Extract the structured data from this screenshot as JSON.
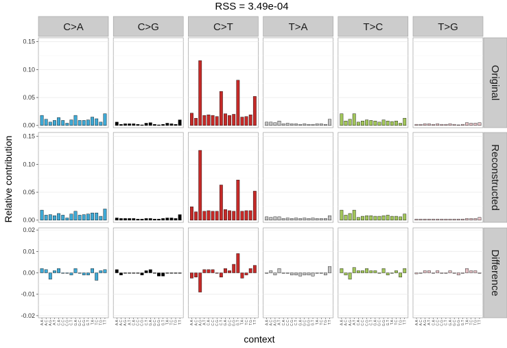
{
  "chart_data": {
    "type": "bar",
    "title": "RSS = 3.49e-04",
    "xlabel": "context",
    "ylabel": "Relative contribution",
    "grid": true,
    "columns": [
      "C>A",
      "C>G",
      "C>T",
      "T>A",
      "T>C",
      "T>G"
    ],
    "colors": {
      "C>A": "#3fa9d5",
      "C>G": "#000000",
      "C>T": "#c52a28",
      "T>A": "#c4c4c4",
      "T>C": "#a2c65b",
      "T>G": "#e6c2c6"
    },
    "contexts": [
      "A.A",
      "A.C",
      "A.G",
      "A.T",
      "C.A",
      "C.C",
      "C.G",
      "C.T",
      "G.A",
      "G.C",
      "G.G",
      "G.T",
      "T.A",
      "T.C",
      "T.G",
      "T.T"
    ],
    "rows": [
      {
        "name": "Original",
        "ylim": [
          -0.004,
          0.157
        ],
        "ticks": [
          0.0,
          0.05,
          0.1,
          0.15
        ],
        "tick_labels": [
          "0.00",
          "0.05",
          "0.10",
          "0.15"
        ],
        "values": {
          "C>A": [
            0.018,
            0.011,
            0.006,
            0.009,
            0.014,
            0.009,
            0.004,
            0.01,
            0.018,
            0.009,
            0.009,
            0.01,
            0.015,
            0.012,
            0.006,
            0.021
          ],
          "C>G": [
            0.006,
            0.002,
            0.003,
            0.003,
            0.003,
            0.002,
            0.001,
            0.004,
            0.005,
            0.002,
            0.001,
            0.002,
            0.004,
            0.003,
            0.002,
            0.01
          ],
          "C>T": [
            0.022,
            0.013,
            0.116,
            0.018,
            0.019,
            0.018,
            0.016,
            0.061,
            0.021,
            0.018,
            0.02,
            0.081,
            0.015,
            0.016,
            0.019,
            0.052
          ],
          "T>A": [
            0.006,
            0.006,
            0.005,
            0.008,
            0.003,
            0.004,
            0.003,
            0.003,
            0.002,
            0.003,
            0.002,
            0.002,
            0.003,
            0.003,
            0.002,
            0.011
          ],
          "T>C": [
            0.021,
            0.008,
            0.011,
            0.021,
            0.006,
            0.008,
            0.01,
            0.009,
            0.008,
            0.006,
            0.01,
            0.008,
            0.007,
            0.008,
            0.004,
            0.013
          ],
          "T>G": [
            0.002,
            0.002,
            0.003,
            0.003,
            0.002,
            0.003,
            0.002,
            0.002,
            0.003,
            0.002,
            0.001,
            0.002,
            0.005,
            0.004,
            0.004,
            0.005
          ]
        }
      },
      {
        "name": "Reconstructed",
        "ylim": [
          -0.004,
          0.157
        ],
        "ticks": [
          0.0,
          0.05,
          0.1,
          0.15
        ],
        "tick_labels": [
          "0.00",
          "0.05",
          "0.10",
          "0.15"
        ],
        "values": {
          "C>A": [
            0.018,
            0.009,
            0.01,
            0.008,
            0.012,
            0.009,
            0.004,
            0.011,
            0.016,
            0.009,
            0.01,
            0.011,
            0.013,
            0.013,
            0.007,
            0.02
          ],
          "C>G": [
            0.004,
            0.003,
            0.003,
            0.003,
            0.003,
            0.002,
            0.002,
            0.003,
            0.003,
            0.002,
            0.002,
            0.003,
            0.004,
            0.004,
            0.003,
            0.01
          ],
          "C>T": [
            0.024,
            0.015,
            0.125,
            0.016,
            0.017,
            0.016,
            0.016,
            0.063,
            0.019,
            0.017,
            0.016,
            0.072,
            0.016,
            0.017,
            0.017,
            0.052
          ],
          "T>A": [
            0.006,
            0.005,
            0.006,
            0.006,
            0.003,
            0.004,
            0.003,
            0.004,
            0.003,
            0.004,
            0.003,
            0.004,
            0.003,
            0.003,
            0.003,
            0.008
          ],
          "T>C": [
            0.018,
            0.009,
            0.012,
            0.018,
            0.005,
            0.007,
            0.008,
            0.008,
            0.007,
            0.007,
            0.008,
            0.009,
            0.007,
            0.007,
            0.006,
            0.011
          ],
          "T>G": [
            0.002,
            0.002,
            0.002,
            0.002,
            0.002,
            0.002,
            0.002,
            0.002,
            0.002,
            0.002,
            0.002,
            0.002,
            0.003,
            0.003,
            0.003,
            0.005
          ]
        }
      },
      {
        "name": "Difference",
        "ylim": [
          -0.021,
          0.021
        ],
        "ticks": [
          -0.02,
          -0.01,
          0.0,
          0.01,
          0.02
        ],
        "tick_labels": [
          "-0.02",
          "-0.01",
          "0.00",
          "0.01",
          "0.02"
        ],
        "values": {
          "C>A": [
            0.002,
            0.0015,
            -0.003,
            0.001,
            0.002,
            0.0,
            0.0,
            -0.001,
            0.002,
            0.0,
            -0.001,
            -0.001,
            0.002,
            -0.0035,
            0.001,
            0.0015
          ],
          "C>G": [
            0.0015,
            -0.001,
            0.0,
            0.0,
            0.0,
            0.0,
            -0.001,
            0.001,
            0.0015,
            0.0,
            -0.0015,
            -0.0015,
            0.0,
            0.0,
            0.0,
            0.0
          ],
          "C>T": [
            -0.0025,
            -0.002,
            -0.009,
            0.0015,
            0.0015,
            0.0015,
            0.0,
            -0.002,
            0.002,
            0.001,
            0.004,
            0.009,
            -0.0025,
            -0.001,
            0.002,
            0.0035
          ],
          "T>A": [
            0.0,
            0.001,
            -0.001,
            0.002,
            0.0,
            0.0,
            -0.001,
            -0.001,
            -0.0015,
            -0.001,
            -0.001,
            -0.0015,
            0.0,
            0.0,
            -0.001,
            0.003
          ],
          "T>C": [
            0.002,
            -0.001,
            -0.003,
            0.0025,
            0.001,
            0.001,
            0.002,
            0.001,
            0.001,
            0.0,
            0.002,
            -0.001,
            0.0,
            0.001,
            -0.002,
            0.002
          ],
          "T>G": [
            -0.0005,
            0.0,
            0.001,
            0.001,
            0.0,
            0.001,
            0.0,
            0.0,
            0.001,
            0.0,
            -0.001,
            0.0,
            0.002,
            0.001,
            0.001,
            0.0
          ]
        }
      }
    ]
  }
}
